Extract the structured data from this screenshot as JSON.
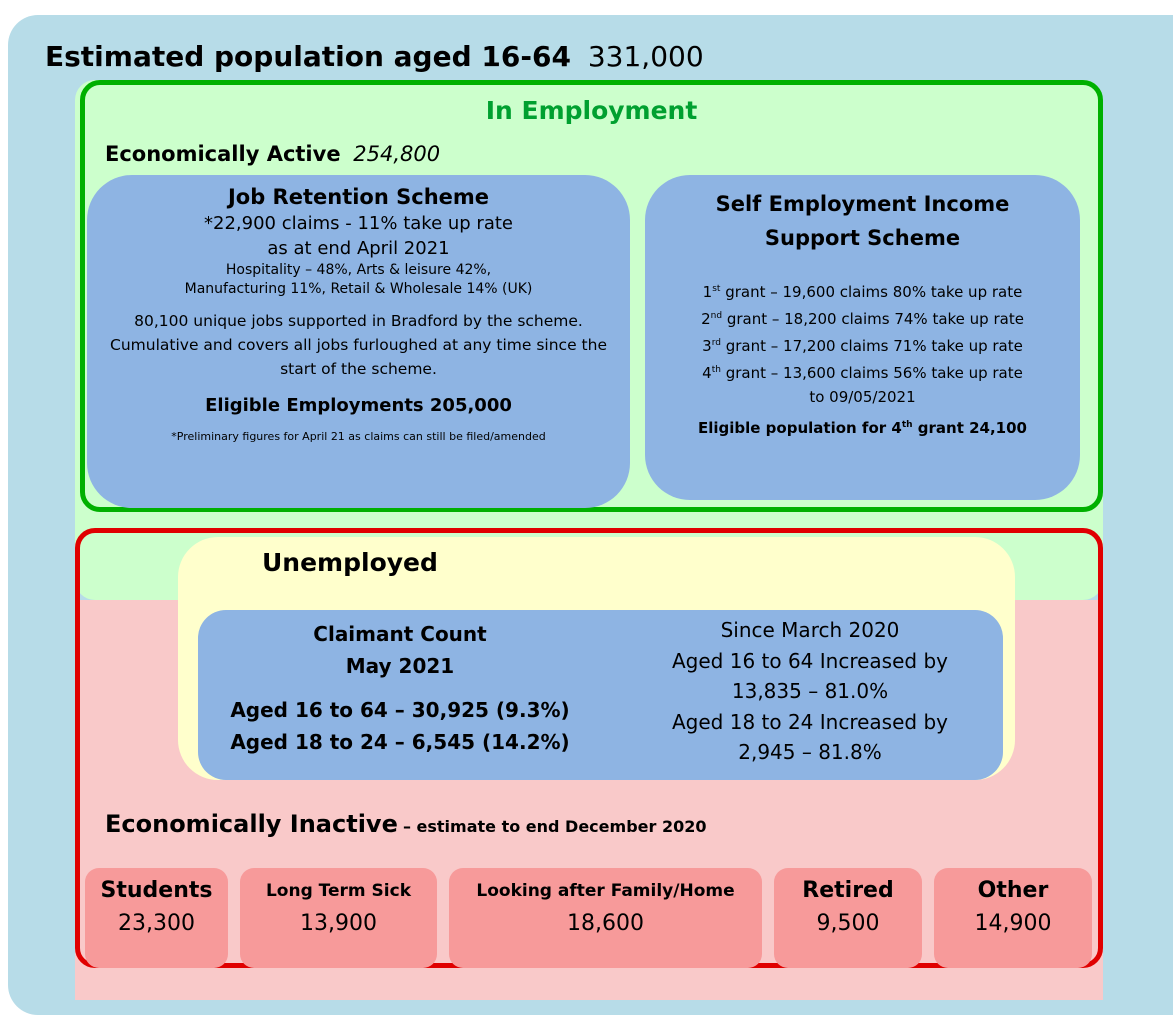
{
  "header": {
    "title": "Estimated population aged 16-64",
    "value": "331,000"
  },
  "employment": {
    "title": "In Employment",
    "active_label": "Economically Active",
    "active_value": "254,800",
    "jrs": {
      "title": "Job Retention Scheme",
      "lines": [
        "*22,900 claims - 11% take up rate",
        "as at end April 2021"
      ],
      "sectors": [
        "Hospitality – 48%, Arts & leisure 42%,",
        "Manufacturing 11%, Retail & Wholesale 14% (UK)"
      ],
      "jobs": "80,100 unique jobs supported in Bradford by the scheme. Cumulative and covers all jobs furloughed at any time since the start of the scheme.",
      "eligible": "Eligible Employments 205,000",
      "footnote": "*Preliminary figures for April 21 as claims can still be filed/amended"
    },
    "seiss": {
      "title": "Self Employment Income Support Scheme",
      "grants": [
        {
          "number": "1",
          "suffix": "st",
          "text": "grant – 19,600 claims 80% take up rate"
        },
        {
          "number": "2",
          "suffix": "nd",
          "text": "grant – 18,200 claims 74% take up rate"
        },
        {
          "number": "3",
          "suffix": "rd",
          "text": "grant – 17,200 claims 71% take up rate"
        },
        {
          "number": "4",
          "suffix": "th",
          "text": "grant – 13,600 claims 56% take up rate"
        }
      ],
      "date": "to 09/05/2021",
      "eligible": {
        "before": "Eligible population for 4",
        "suffix": "th",
        "after": "grant 24,100"
      }
    }
  },
  "unemployed": {
    "title": "Unemployed",
    "claimant_title": "Claimant Count",
    "claimant_date": "May 2021",
    "counts": [
      "Aged 16 to 64 – 30,925 (9.3%)",
      "Aged 18 to 24 – 6,545 (14.2%)"
    ],
    "change": [
      "Since March 2020",
      "Aged 16 to 64 Increased by",
      "13,835 – 81.0%",
      "Aged 18 to 24 Increased by",
      "2,945 – 81.8%"
    ]
  },
  "inactive": {
    "title": "Economically Inactive",
    "subtitle": "– estimate to end December 2020",
    "groups": [
      {
        "label": "Students",
        "value": "23,300"
      },
      {
        "label": "Long Term Sick",
        "value": "13,900"
      },
      {
        "label": "Looking after Family/Home",
        "value": "18,600"
      },
      {
        "label": "Retired",
        "value": "9,500"
      },
      {
        "label": "Other",
        "value": "14,900"
      }
    ]
  }
}
